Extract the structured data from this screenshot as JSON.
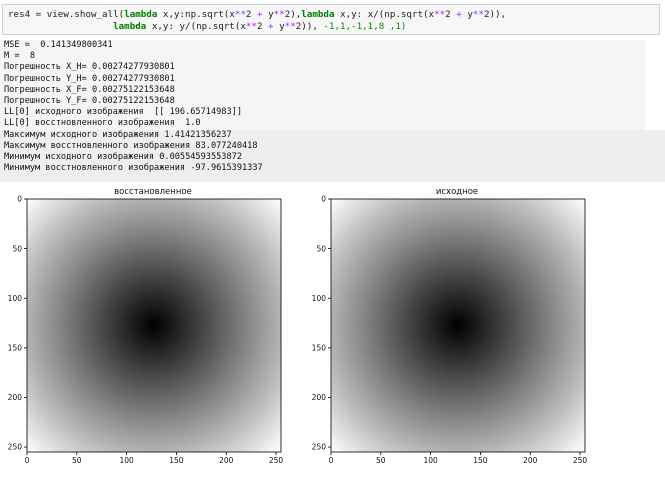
{
  "code_cell": {
    "line1": {
      "a": "res4 = view.show_all(",
      "kw1": "lambda",
      "b": " x,y:np.sqrt(x",
      "op1": "**",
      "c": "2 ",
      "op2": "+",
      "d": " y",
      "op3": "**",
      "e": "2),",
      "kw2": "lambda",
      "f": " x,y: x/(np.sqrt(x",
      "op4": "**",
      "g": "2 ",
      "op5": "+",
      "h": " y",
      "op6": "**",
      "i": "2)),"
    },
    "line2": {
      "pad": "                   ",
      "kw": "lambda",
      "a": " x,y: y/(np.sqrt(x",
      "op1": "**",
      "b": "2 ",
      "op2": "+",
      "c": " y",
      "op3": "**",
      "d": "2)), ",
      "nums": "-1,1,-1,1,8 ,1)"
    }
  },
  "output_lines": [
    "MSE =  0.141349800341",
    "M =  8",
    "Погрешность X_H= 0.00274277930801",
    "Погрешность Y_H= 0.00274277930801",
    "Погрешность X_F= 0.00275122153648",
    "Погрешность Y_F= 0.00275122153648",
    "LL[0] исходного изображения  [[ 196.65714983]]",
    "LL[0] восстновленного изображения  1.0",
    "Максимум исходного изображения 1.41421356237",
    "Максимум восстновленного изображения 83.077240418",
    "Минимум исходного изображения 0.00554593553872",
    "Минимум восстновленного изображения -97.9615391337"
  ],
  "plots": [
    {
      "title": "восстановленное",
      "center_x": 127,
      "center_y": 127
    },
    {
      "title": "исходное",
      "center_x": 127,
      "center_y": 127
    }
  ],
  "axes": {
    "x_ticks": [
      "0",
      "50",
      "100",
      "150",
      "200",
      "250"
    ],
    "y_ticks": [
      "0",
      "50",
      "100",
      "150",
      "200",
      "250"
    ],
    "range": [
      0,
      255
    ]
  },
  "colors": {
    "colormap": "gray",
    "center": "#000000",
    "edge": "#ffffff"
  }
}
